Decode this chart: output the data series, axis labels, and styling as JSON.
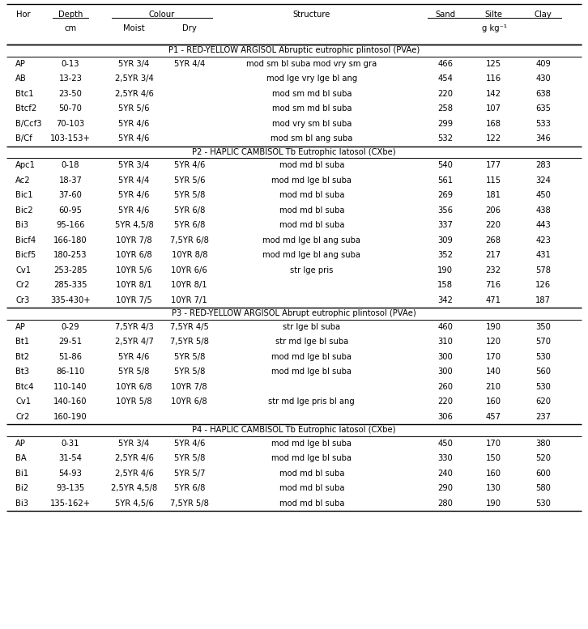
{
  "col_headers_row1": [
    "Hor",
    "Depth",
    "Colour",
    "Structure",
    "Sand",
    "Silte",
    "Clay"
  ],
  "col_headers_row2": [
    "cm",
    "Moist",
    "Dry",
    "g kg⁻¹"
  ],
  "profiles": [
    {
      "header": "P1 - RED-YELLOW ARGISOL Abruptic eutrophic plintosol (PVAe)",
      "rows": [
        [
          "AP",
          "0-13",
          "5YR 3/4",
          "5YR 4/4",
          "mod sm bl suba mod vry sm gra",
          "466",
          "125",
          "409"
        ],
        [
          "AB",
          "13-23",
          "2,5YR 3/4",
          "",
          "mod lge vry lge bl ang",
          "454",
          "116",
          "430"
        ],
        [
          "Btc1",
          "23-50",
          "2,5YR 4/6",
          "",
          "mod sm md bl suba",
          "220",
          "142",
          "638"
        ],
        [
          "Btcf2",
          "50-70",
          "5YR 5/6",
          "",
          "mod sm md bl suba",
          "258",
          "107",
          "635"
        ],
        [
          "B/Ccf3",
          "70-103",
          "5YR 4/6",
          "",
          "mod vry sm bl suba",
          "299",
          "168",
          "533"
        ],
        [
          "B/Cf",
          "103-153+",
          "5YR 4/6",
          "",
          "mod sm bl ang suba",
          "532",
          "122",
          "346"
        ]
      ]
    },
    {
      "header": "P2 - HAPLIC CAMBISOL Tb Eutrophic latosol (CXbe)",
      "rows": [
        [
          "Apc1",
          "0-18",
          "5YR 3/4",
          "5YR 4/6",
          "mod md bl suba",
          "540",
          "177",
          "283"
        ],
        [
          "Ac2",
          "18-37",
          "5YR 4/4",
          "5YR 5/6",
          "mod md lge bl suba",
          "561",
          "115",
          "324"
        ],
        [
          "Bic1",
          "37-60",
          "5YR 4/6",
          "5YR 5/8",
          "mod md bl suba",
          "269",
          "181",
          "450"
        ],
        [
          "Bic2",
          "60-95",
          "5YR 4/6",
          "5YR 6/8",
          "mod md bl suba",
          "356",
          "206",
          "438"
        ],
        [
          "Bi3",
          "95-166",
          "5YR 4,5/8",
          "5YR 6/8",
          "mod md bl suba",
          "337",
          "220",
          "443"
        ],
        [
          "Bicf4",
          "166-180",
          "10YR 7/8",
          "7,5YR 6/8",
          "mod md lge bl ang suba",
          "309",
          "268",
          "423"
        ],
        [
          "Bicf5",
          "180-253",
          "10YR 6/8",
          "10YR 8/8",
          "mod md lge bl ang suba",
          "352",
          "217",
          "431"
        ],
        [
          "Cv1",
          "253-285",
          "10YR 5/6",
          "10YR 6/6",
          "str lge pris",
          "190",
          "232",
          "578"
        ],
        [
          "Cr2",
          "285-335",
          "10YR 8/1",
          "10YR 8/1",
          "",
          "158",
          "716",
          "126"
        ],
        [
          "Cr3",
          "335-430+",
          "10YR 7/5",
          "10YR 7/1",
          "",
          "342",
          "471",
          "187"
        ]
      ]
    },
    {
      "header": "P3 - RED-YELLOW ARGISOL Abrupt eutrophic plintosol (PVAe)",
      "rows": [
        [
          "AP",
          "0-29",
          "7,5YR 4/3",
          "7,5YR 4/5",
          "str lge bl suba",
          "460",
          "190",
          "350"
        ],
        [
          "Bt1",
          "29-51",
          "2,5YR 4/7",
          "7,5YR 5/8",
          "str md lge bl suba",
          "310",
          "120",
          "570"
        ],
        [
          "Bt2",
          "51-86",
          "5YR 4/6",
          "5YR 5/8",
          "mod md lge bl suba",
          "300",
          "170",
          "530"
        ],
        [
          "Bt3",
          "86-110",
          "5YR 5/8",
          "5YR 5/8",
          "mod md lge bl suba",
          "300",
          "140",
          "560"
        ],
        [
          "Btc4",
          "110-140",
          "10YR 6/8",
          "10YR 7/8",
          "",
          "260",
          "210",
          "530"
        ],
        [
          "Cv1",
          "140-160",
          "10YR 5/8",
          "10YR 6/8",
          "str md lge pris bl ang",
          "220",
          "160",
          "620"
        ],
        [
          "Cr2",
          "160-190",
          "",
          "",
          "",
          "306",
          "457",
          "237"
        ]
      ]
    },
    {
      "header": "P4 - HAPLIC CAMBISOL Tb Eutrophic latosol (CXbe)",
      "rows": [
        [
          "AP",
          "0-31",
          "5YR 3/4",
          "5YR 4/6",
          "mod md lge bl suba",
          "450",
          "170",
          "380"
        ],
        [
          "BA",
          "31-54",
          "2,5YR 4/6",
          "5YR 5/8",
          "mod md lge bl suba",
          "330",
          "150",
          "520"
        ],
        [
          "Bi1",
          "54-93",
          "2,5YR 4/6",
          "5YR 5/7",
          "mod md bl suba",
          "240",
          "160",
          "600"
        ],
        [
          "Bi2",
          "93-135",
          "2,5YR 4,5/8",
          "5YR 6/8",
          "mod md bl suba",
          "290",
          "130",
          "580"
        ],
        [
          "Bi3",
          "135-162+",
          "5YR 4,5/6",
          "7,5YR 5/8",
          "mod md bl suba",
          "280",
          "190",
          "530"
        ]
      ]
    }
  ],
  "col_x_norm": {
    "hor": 0.04,
    "depth": 0.12,
    "moist": 0.228,
    "dry": 0.322,
    "structure": 0.53,
    "sand": 0.757,
    "silte": 0.839,
    "clay": 0.924
  },
  "font_size": 7.2,
  "line_color": "#000000",
  "bg_color": "#ffffff"
}
